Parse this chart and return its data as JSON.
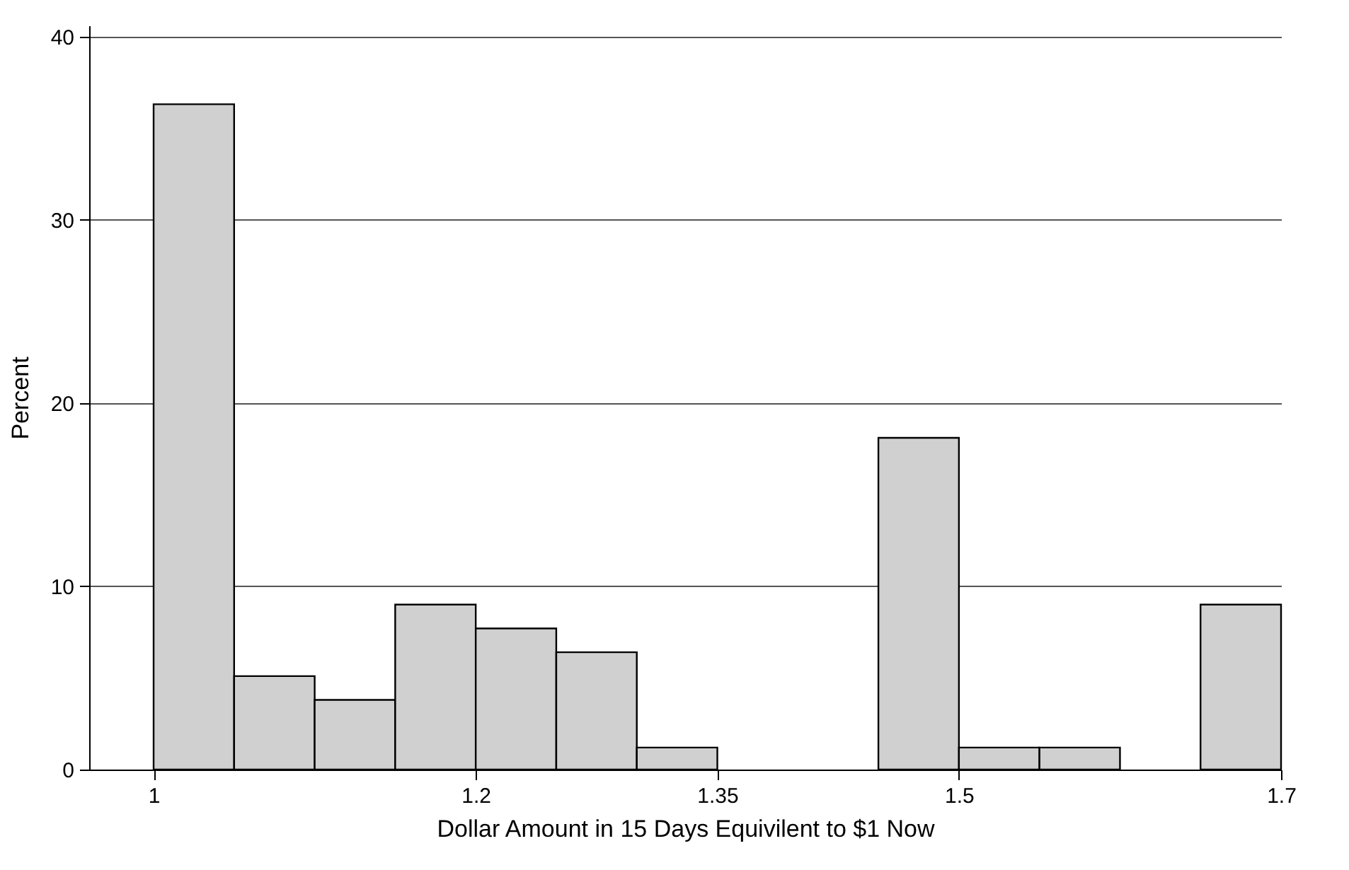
{
  "chart_data": {
    "type": "histogram",
    "xlabel": "Dollar Amount in 15 Days Equivilent to $1 Now",
    "ylabel": "Percent",
    "bins": [
      1,
      1.05,
      1.1,
      1.15,
      1.2,
      1.25,
      1.3,
      1.35,
      1.4,
      1.45,
      1.5,
      1.55,
      1.6,
      1.65,
      1.7
    ],
    "values": [
      36.3,
      5.1,
      3.8,
      9.0,
      7.7,
      6.4,
      1.2,
      0,
      0,
      18.1,
      1.2,
      1.2,
      0,
      9.0
    ],
    "color": "#d0d0d0",
    "xlim": [
      0.96,
      1.7
    ],
    "xticks": [
      1,
      1.2,
      1.35,
      1.5,
      1.7
    ],
    "ylim": [
      0,
      40.6
    ],
    "yticks": [
      0,
      10,
      20,
      30,
      40
    ],
    "grid": "y"
  }
}
